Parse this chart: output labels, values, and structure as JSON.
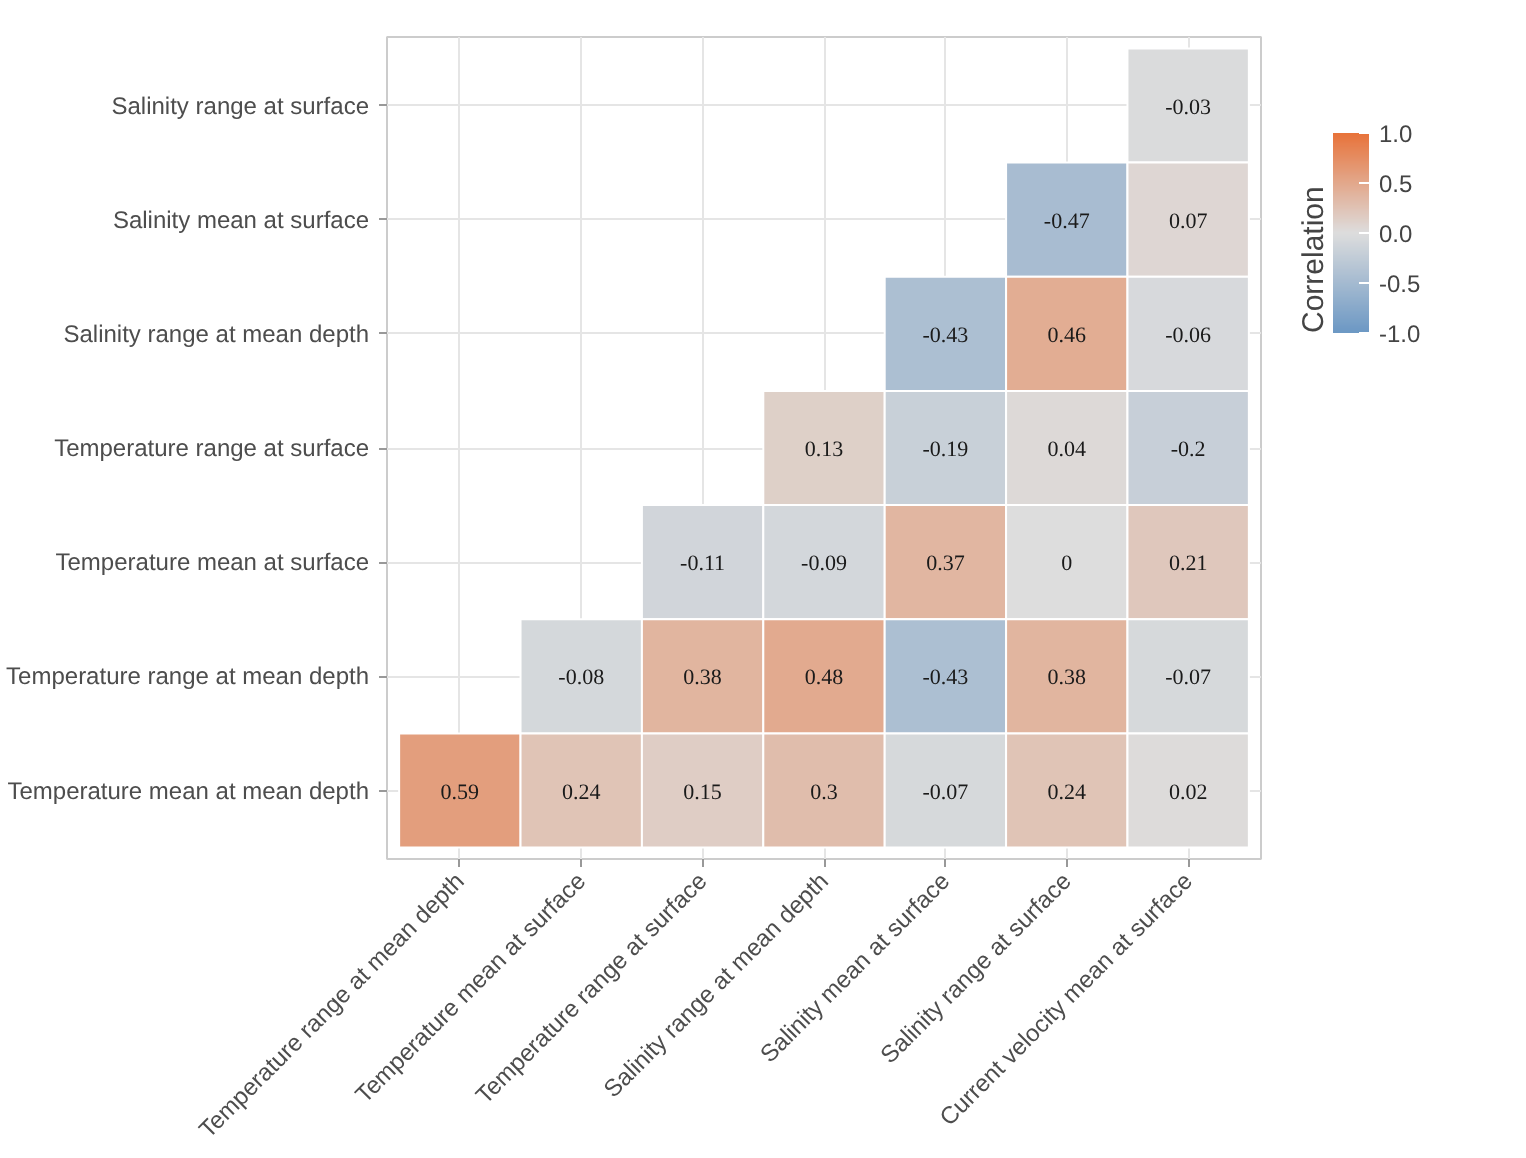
{
  "chart_data": {
    "type": "heatmap",
    "categories": [
      "Temperature range at mean depth",
      "Temperature mean at surface",
      "Temperature range at surface",
      "Salinity range at mean depth",
      "Salinity mean at surface",
      "Salinity range at surface",
      "Current velocity mean at surface"
    ],
    "y_categories": [
      "Salinity range at surface",
      "Salinity mean at surface",
      "Salinity range at mean depth",
      "Temperature range at surface",
      "Temperature mean at surface",
      "Temperature range at mean depth",
      "Temperature mean at mean depth"
    ],
    "cells": [
      [
        null,
        null,
        null,
        null,
        null,
        null,
        -0.03
      ],
      [
        null,
        null,
        null,
        null,
        null,
        -0.47,
        0.07
      ],
      [
        null,
        null,
        null,
        null,
        -0.43,
        0.46,
        -0.06
      ],
      [
        null,
        null,
        null,
        0.13,
        -0.19,
        0.04,
        -0.2
      ],
      [
        null,
        null,
        -0.11,
        -0.09,
        0.37,
        0,
        0.21
      ],
      [
        null,
        -0.08,
        0.38,
        0.48,
        -0.43,
        0.38,
        -0.07
      ],
      [
        0.59,
        0.24,
        0.15,
        0.3,
        -0.07,
        0.24,
        0.02
      ]
    ],
    "clabel": "Correlation",
    "clim": [
      -1,
      1
    ],
    "cticks": [
      {
        "value": 1,
        "label": "1.0"
      },
      {
        "value": 0.5,
        "label": "0.5"
      },
      {
        "value": 0,
        "label": "0.0"
      },
      {
        "value": -0.5,
        "label": "-0.5"
      },
      {
        "value": -1,
        "label": "-1.0"
      }
    ],
    "data_labels": true,
    "grid": true
  }
}
